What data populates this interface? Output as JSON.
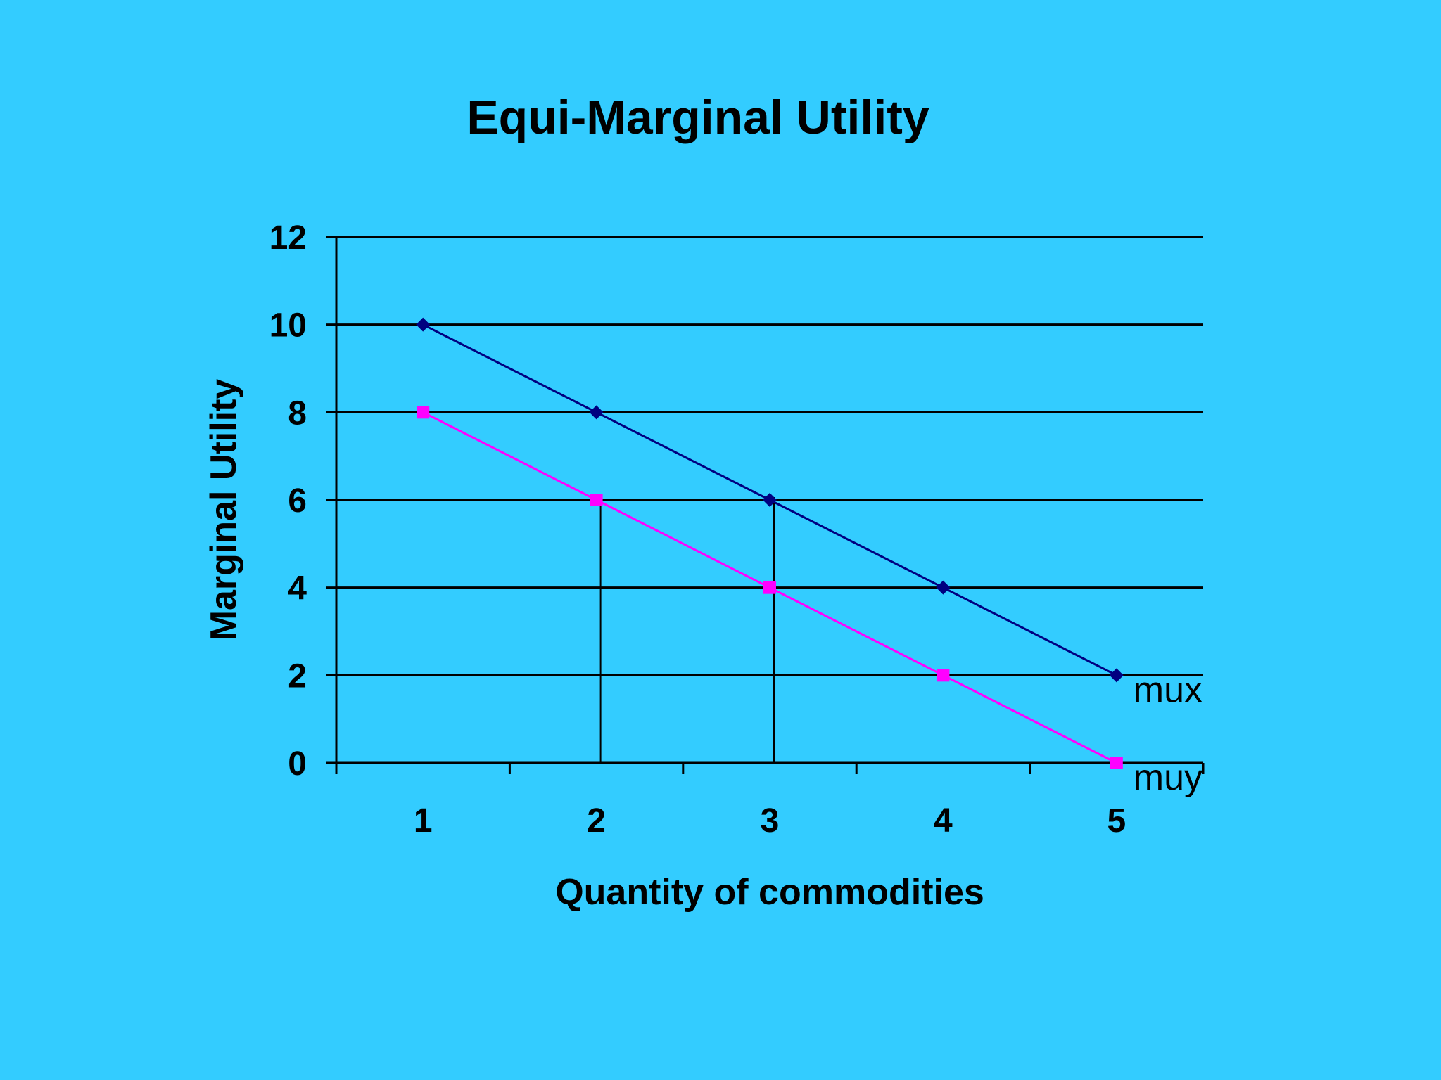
{
  "chart_data": {
    "type": "line",
    "title": "Equi-Marginal Utility",
    "xlabel": "Quantity of commodities",
    "ylabel": "Marginal Utility",
    "categories": [
      "1",
      "2",
      "3",
      "4",
      "5"
    ],
    "x": [
      1,
      2,
      3,
      4,
      5
    ],
    "ylim": [
      0,
      12
    ],
    "yticks": [
      0,
      2,
      4,
      6,
      8,
      10,
      12
    ],
    "grid": true,
    "legend": "none",
    "series": [
      {
        "name": "mux",
        "values": [
          10,
          8,
          6,
          4,
          2
        ],
        "color": "#000080",
        "marker": "diamond"
      },
      {
        "name": "muy",
        "values": [
          8,
          6,
          4,
          2,
          0
        ],
        "color": "#FF00FF",
        "marker": "square"
      }
    ],
    "annotations": [
      {
        "type": "vertical-line",
        "x": 2,
        "y_from": 0,
        "y_to": 6
      },
      {
        "type": "vertical-line",
        "x": 3,
        "y_from": 0,
        "y_to": 6
      }
    ]
  },
  "colors": {
    "background": "#33CCFF",
    "axis": "#000000",
    "gridline": "#000000"
  }
}
